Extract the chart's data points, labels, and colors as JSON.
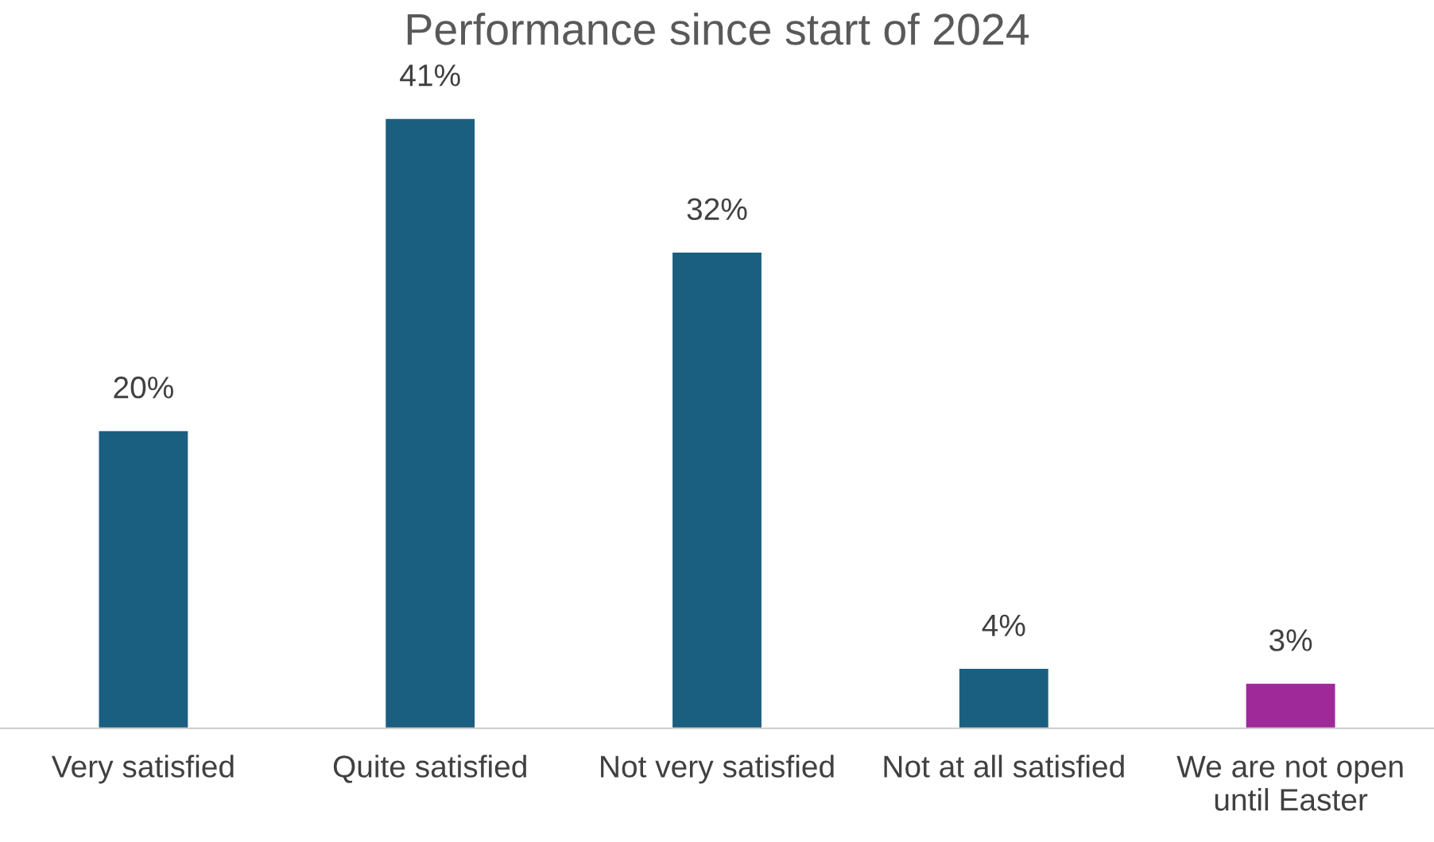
{
  "chart_data": {
    "type": "bar",
    "title": "Performance since start of 2024",
    "categories": [
      "Very satisfied",
      "Quite satisfied",
      "Not very satisfied",
      "Not at all satisfied",
      "We are not open\nuntil Easter"
    ],
    "values": [
      20,
      41,
      32,
      4,
      3
    ],
    "colors": [
      "#1b5f80",
      "#1b5f80",
      "#1b5f80",
      "#1b5f80",
      "#a0299a"
    ],
    "value_labels": [
      "20%",
      "41%",
      "32%",
      "4%",
      "3%"
    ],
    "grid": false,
    "legend": false
  }
}
